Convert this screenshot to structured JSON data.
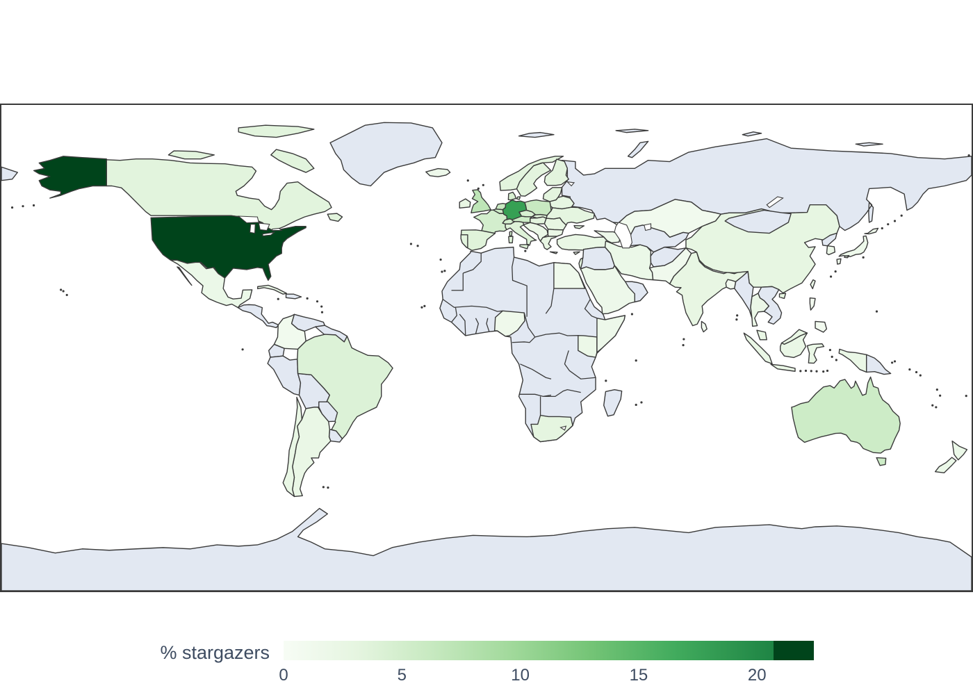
{
  "colorbar": {
    "label": "% stargazers",
    "ticks": [
      "0",
      "5",
      "10",
      "15",
      "20"
    ]
  },
  "chart_data": {
    "type": "choropleth",
    "projection": "equirectangular",
    "title": "",
    "legend_label": "% stargazers",
    "colormap": "Greens",
    "colorbar_tick_values": [
      0,
      5,
      10,
      15,
      20
    ],
    "value_range": [
      0,
      22.4
    ],
    "cap_start_value": 20.7,
    "ocean_color": "#ffffff",
    "no_data_color": "#e2e8f2",
    "border_color": "#3a3a3a",
    "frame_color": "#3a3a3a",
    "text_color": "#3e4c61",
    "colormap_anchors": [
      "#f7fcf5",
      "#e5f5e0",
      "#c7e9c0",
      "#a1d99b",
      "#74c476",
      "#41ab5d",
      "#238b45",
      "#006d2c",
      "#00441b"
    ],
    "colorbar_gradient_stops": [
      {
        "pos": 0.0,
        "color": "#f7fcf5"
      },
      {
        "pos": 0.14,
        "color": "#e5f5e0"
      },
      {
        "pos": 0.28,
        "color": "#c7e9c0"
      },
      {
        "pos": 0.43,
        "color": "#a1d99b"
      },
      {
        "pos": 0.58,
        "color": "#74c476"
      },
      {
        "pos": 0.74,
        "color": "#41ab5d"
      },
      {
        "pos": 0.924,
        "color": "#1e8444"
      },
      {
        "pos": 0.9241,
        "color": "#00441b"
      },
      {
        "pos": 1.0,
        "color": "#00441b"
      }
    ],
    "countries": {
      "United States": 22.4,
      "Germany": 15.0,
      "United Kingdom": 6.3,
      "Netherlands": 5.5,
      "Poland": 5.5,
      "Belgium": 5.0,
      "Austria": 5.0,
      "Australia": 5.0,
      "Switzerland": 4.5,
      "France": 4.5,
      "Czechia": 4.0,
      "Denmark": 4.0,
      "Brazil": 3.6,
      "Italy": 3.5,
      "Slovakia": 3.5,
      "Spain": 3.3,
      "Canada": 3.1,
      "Sweden": 3.0,
      "Norway": 3.0,
      "Finland": 3.0,
      "Portugal": 3.0,
      "Hungary": 3.0,
      "Baltic states": 3.0,
      "Israel": 3.0,
      "Ukraine": 2.8,
      "South Africa": 2.8,
      "Belarus": 2.6,
      "Romania": 2.5,
      "China": 2.5,
      "Greece": 2.4,
      "Ireland": 2.4,
      "India": 2.4,
      "Chile": 2.2,
      "Turkey": 2.2,
      "Malaysia": 2.2,
      "Argentina": 2.0,
      "Indonesia": 2.0,
      "Western Balkans": 2.0,
      "Bulgaria": 2.0,
      "Cuba": 2.0,
      "Thailand": 1.9,
      "Mexico": 1.8,
      "Iran": 1.8,
      "New Zealand": 1.8,
      "Taiwan": 1.8,
      "Kenya": 1.7,
      "South Korea": 1.6,
      "Saudi Arabia": 1.5,
      "Somalia": 1.5,
      "Iceland": 1.5,
      "Caucasus": 1.5,
      "Cyprus": 1.5,
      "Japan": 1.4,
      "Nigeria": 1.3,
      "Egypt": 1.2,
      "Pakistan": 1.1,
      "Kazakhstan": 1.0,
      "Colombia": 1.0,
      "Sri Lanka": 1.0,
      "Bangladesh": 0.8,
      "Philippines": 0.8
    },
    "no_data_countries": [
      "Russia",
      "Greenland",
      "Antarctica",
      "Mongolia",
      "North Korea",
      "Myanmar",
      "Vietnam, Laos & Cambodia",
      "Papua New Guinea",
      "Afghanistan",
      "Central Asia",
      "Iraq, Syria & Jordan",
      "Oman & UAE",
      "Africa (interior & north)",
      "Madagascar",
      "Central America",
      "Hispaniola",
      "Venezuela",
      "Guyana & Suriname",
      "Ecuador",
      "Peru",
      "Bolivia",
      "Paraguay",
      "Uruguay",
      "Svalbard",
      "Chukotka (wrap)"
    ]
  }
}
